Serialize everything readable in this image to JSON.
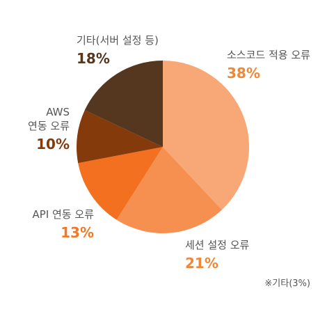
{
  "chart_data": {
    "type": "pie",
    "title": "",
    "slices": [
      {
        "label": "소스코드 적용 오류",
        "label_lines": [
          "소스코드 적용 오류"
        ],
        "value": 38,
        "value_label": "38%",
        "color": "#F8A877",
        "label_color": "#EE8838"
      },
      {
        "label": "세션 설정 오류",
        "label_lines": [
          "세션 설정 오류"
        ],
        "value": 21,
        "value_label": "21%",
        "color": "#F69050",
        "label_color": "#EE8838"
      },
      {
        "label": "API 연동 오류",
        "label_lines": [
          "API 연동 오류"
        ],
        "value": 13,
        "value_label": "13%",
        "color": "#F37020",
        "label_color": "#EE7A28"
      },
      {
        "label": "AWS 연동 오류",
        "label_lines": [
          "AWS",
          "연동 오류"
        ],
        "value": 10,
        "value_label": "10%",
        "color": "#843A0A",
        "label_color": "#843A0A"
      },
      {
        "label": "기타(서버 설정 등)",
        "label_lines": [
          "기타(서버 설정 등)"
        ],
        "value": 18,
        "value_label": "18%",
        "color": "#55361E",
        "label_color": "#55361E"
      }
    ],
    "footnote": "※기타(3%)"
  }
}
